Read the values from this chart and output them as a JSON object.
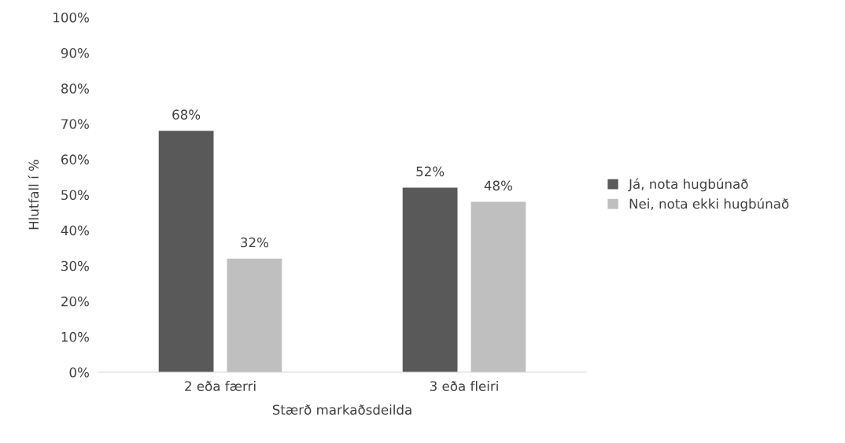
{
  "chart_data": {
    "type": "bar",
    "xlabel": "Stærð markaðsdeilda",
    "ylabel": "Hlutfall í %",
    "categories": [
      "2 eða færri",
      "3 eða fleiri"
    ],
    "series": [
      {
        "name": "Já, nota hugbúnað",
        "color": "#595959",
        "values": [
          68,
          52
        ],
        "value_labels": [
          "68%",
          "52%"
        ]
      },
      {
        "name": "Nei, nota ekki hugbúnað",
        "color": "#bfbfbf",
        "values": [
          32,
          48
        ],
        "value_labels": [
          "32%",
          "48%"
        ]
      }
    ],
    "ylim": [
      0,
      100
    ],
    "yticks": [
      {
        "value": 0,
        "label": "0%"
      },
      {
        "value": 10,
        "label": "10%"
      },
      {
        "value": 20,
        "label": "20%"
      },
      {
        "value": 30,
        "label": "30%"
      },
      {
        "value": 40,
        "label": "40%"
      },
      {
        "value": 50,
        "label": "50%"
      },
      {
        "value": 60,
        "label": "60%"
      },
      {
        "value": 70,
        "label": "70%"
      },
      {
        "value": 80,
        "label": "80%"
      },
      {
        "value": 90,
        "label": "90%"
      },
      {
        "value": 100,
        "label": "100%"
      }
    ],
    "grid": false,
    "legend": "right"
  }
}
